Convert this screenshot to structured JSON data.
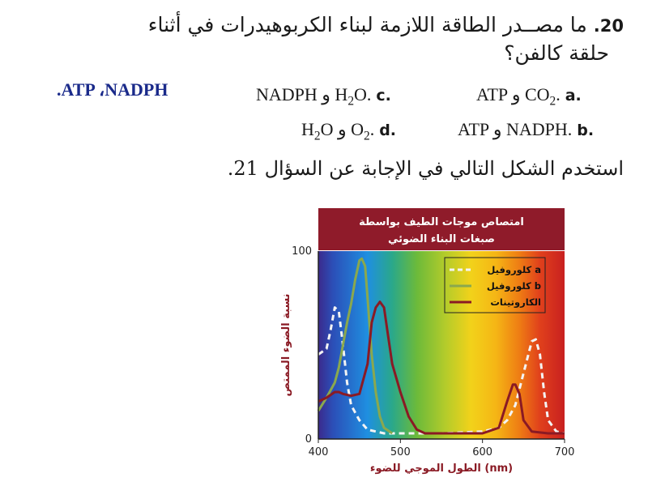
{
  "question": {
    "number": "20.",
    "line1": "ما مصــدر الطاقة اللازمة لبناء الكربوهيدرات في أثناء",
    "line2": "حلقة كالفن؟"
  },
  "answer_key": ".ATP ،NADPH",
  "options": [
    {
      "letter": "a.",
      "text_html": "ATP و CO<sub>2</sub>."
    },
    {
      "letter": "c.",
      "text_html": "NADPH و H<sub>2</sub>O."
    },
    {
      "letter": "b.",
      "text_html": "ATP و NADPH."
    },
    {
      "letter": "d.",
      "text_html": "H<sub>2</sub>O و O<sub>2</sub>."
    }
  ],
  "instruction": "استخدم الشكل التالي في الإجابة عن السؤال 21.",
  "chart_data": {
    "type": "line",
    "title_line1": "امتصاص موجات الطيف بواسطة",
    "title_line2": "صبغات البناء الضوئي",
    "xlabel": "الطول الموجي للضوء (nm)",
    "ylabel": "نسبة الضوء الممتص",
    "xlim": [
      400,
      700
    ],
    "ylim": [
      0,
      100
    ],
    "xticks": [
      "400",
      "500",
      "600",
      "700"
    ],
    "yticks": [
      "0",
      "100"
    ],
    "legend_position": "top-right",
    "series": [
      {
        "name": "كلوروفيل a",
        "color": "#f4f4f4",
        "dash": true,
        "points": [
          [
            400,
            45
          ],
          [
            410,
            48
          ],
          [
            415,
            58
          ],
          [
            420,
            70
          ],
          [
            425,
            68
          ],
          [
            430,
            50
          ],
          [
            435,
            30
          ],
          [
            440,
            18
          ],
          [
            450,
            10
          ],
          [
            460,
            5
          ],
          [
            480,
            3
          ],
          [
            500,
            3
          ],
          [
            550,
            3
          ],
          [
            600,
            4
          ],
          [
            620,
            6
          ],
          [
            630,
            10
          ],
          [
            640,
            18
          ],
          [
            650,
            35
          ],
          [
            660,
            52
          ],
          [
            665,
            53
          ],
          [
            670,
            45
          ],
          [
            675,
            25
          ],
          [
            680,
            10
          ],
          [
            690,
            4
          ],
          [
            700,
            3
          ]
        ]
      },
      {
        "name": "كلوروفيل b",
        "color": "#8aa84e",
        "dash": false,
        "points": [
          [
            400,
            15
          ],
          [
            410,
            22
          ],
          [
            420,
            30
          ],
          [
            425,
            38
          ],
          [
            430,
            50
          ],
          [
            435,
            62
          ],
          [
            440,
            72
          ],
          [
            445,
            85
          ],
          [
            450,
            95
          ],
          [
            453,
            96
          ],
          [
            457,
            92
          ],
          [
            460,
            75
          ],
          [
            465,
            45
          ],
          [
            470,
            25
          ],
          [
            475,
            12
          ],
          [
            480,
            6
          ],
          [
            490,
            3
          ]
        ]
      },
      {
        "name": "الكاروتينات",
        "color": "#8a1a24",
        "dash": false,
        "points": [
          [
            400,
            20
          ],
          [
            410,
            22
          ],
          [
            420,
            25
          ],
          [
            425,
            25
          ],
          [
            430,
            24
          ],
          [
            440,
            23
          ],
          [
            450,
            24
          ],
          [
            460,
            40
          ],
          [
            465,
            62
          ],
          [
            470,
            70
          ],
          [
            475,
            73
          ],
          [
            480,
            70
          ],
          [
            485,
            55
          ],
          [
            490,
            40
          ],
          [
            500,
            25
          ],
          [
            510,
            12
          ],
          [
            520,
            5
          ],
          [
            530,
            3
          ],
          [
            560,
            3
          ],
          [
            600,
            3
          ],
          [
            620,
            6
          ],
          [
            630,
            20
          ],
          [
            637,
            29
          ],
          [
            640,
            29
          ],
          [
            645,
            24
          ],
          [
            650,
            10
          ],
          [
            660,
            4
          ],
          [
            680,
            3
          ],
          [
            700,
            3
          ]
        ]
      }
    ]
  },
  "colors": {
    "title_bg": "#8f1b2a",
    "axis_text": "#8a1a24",
    "answer_text": "#1a2a8a"
  }
}
